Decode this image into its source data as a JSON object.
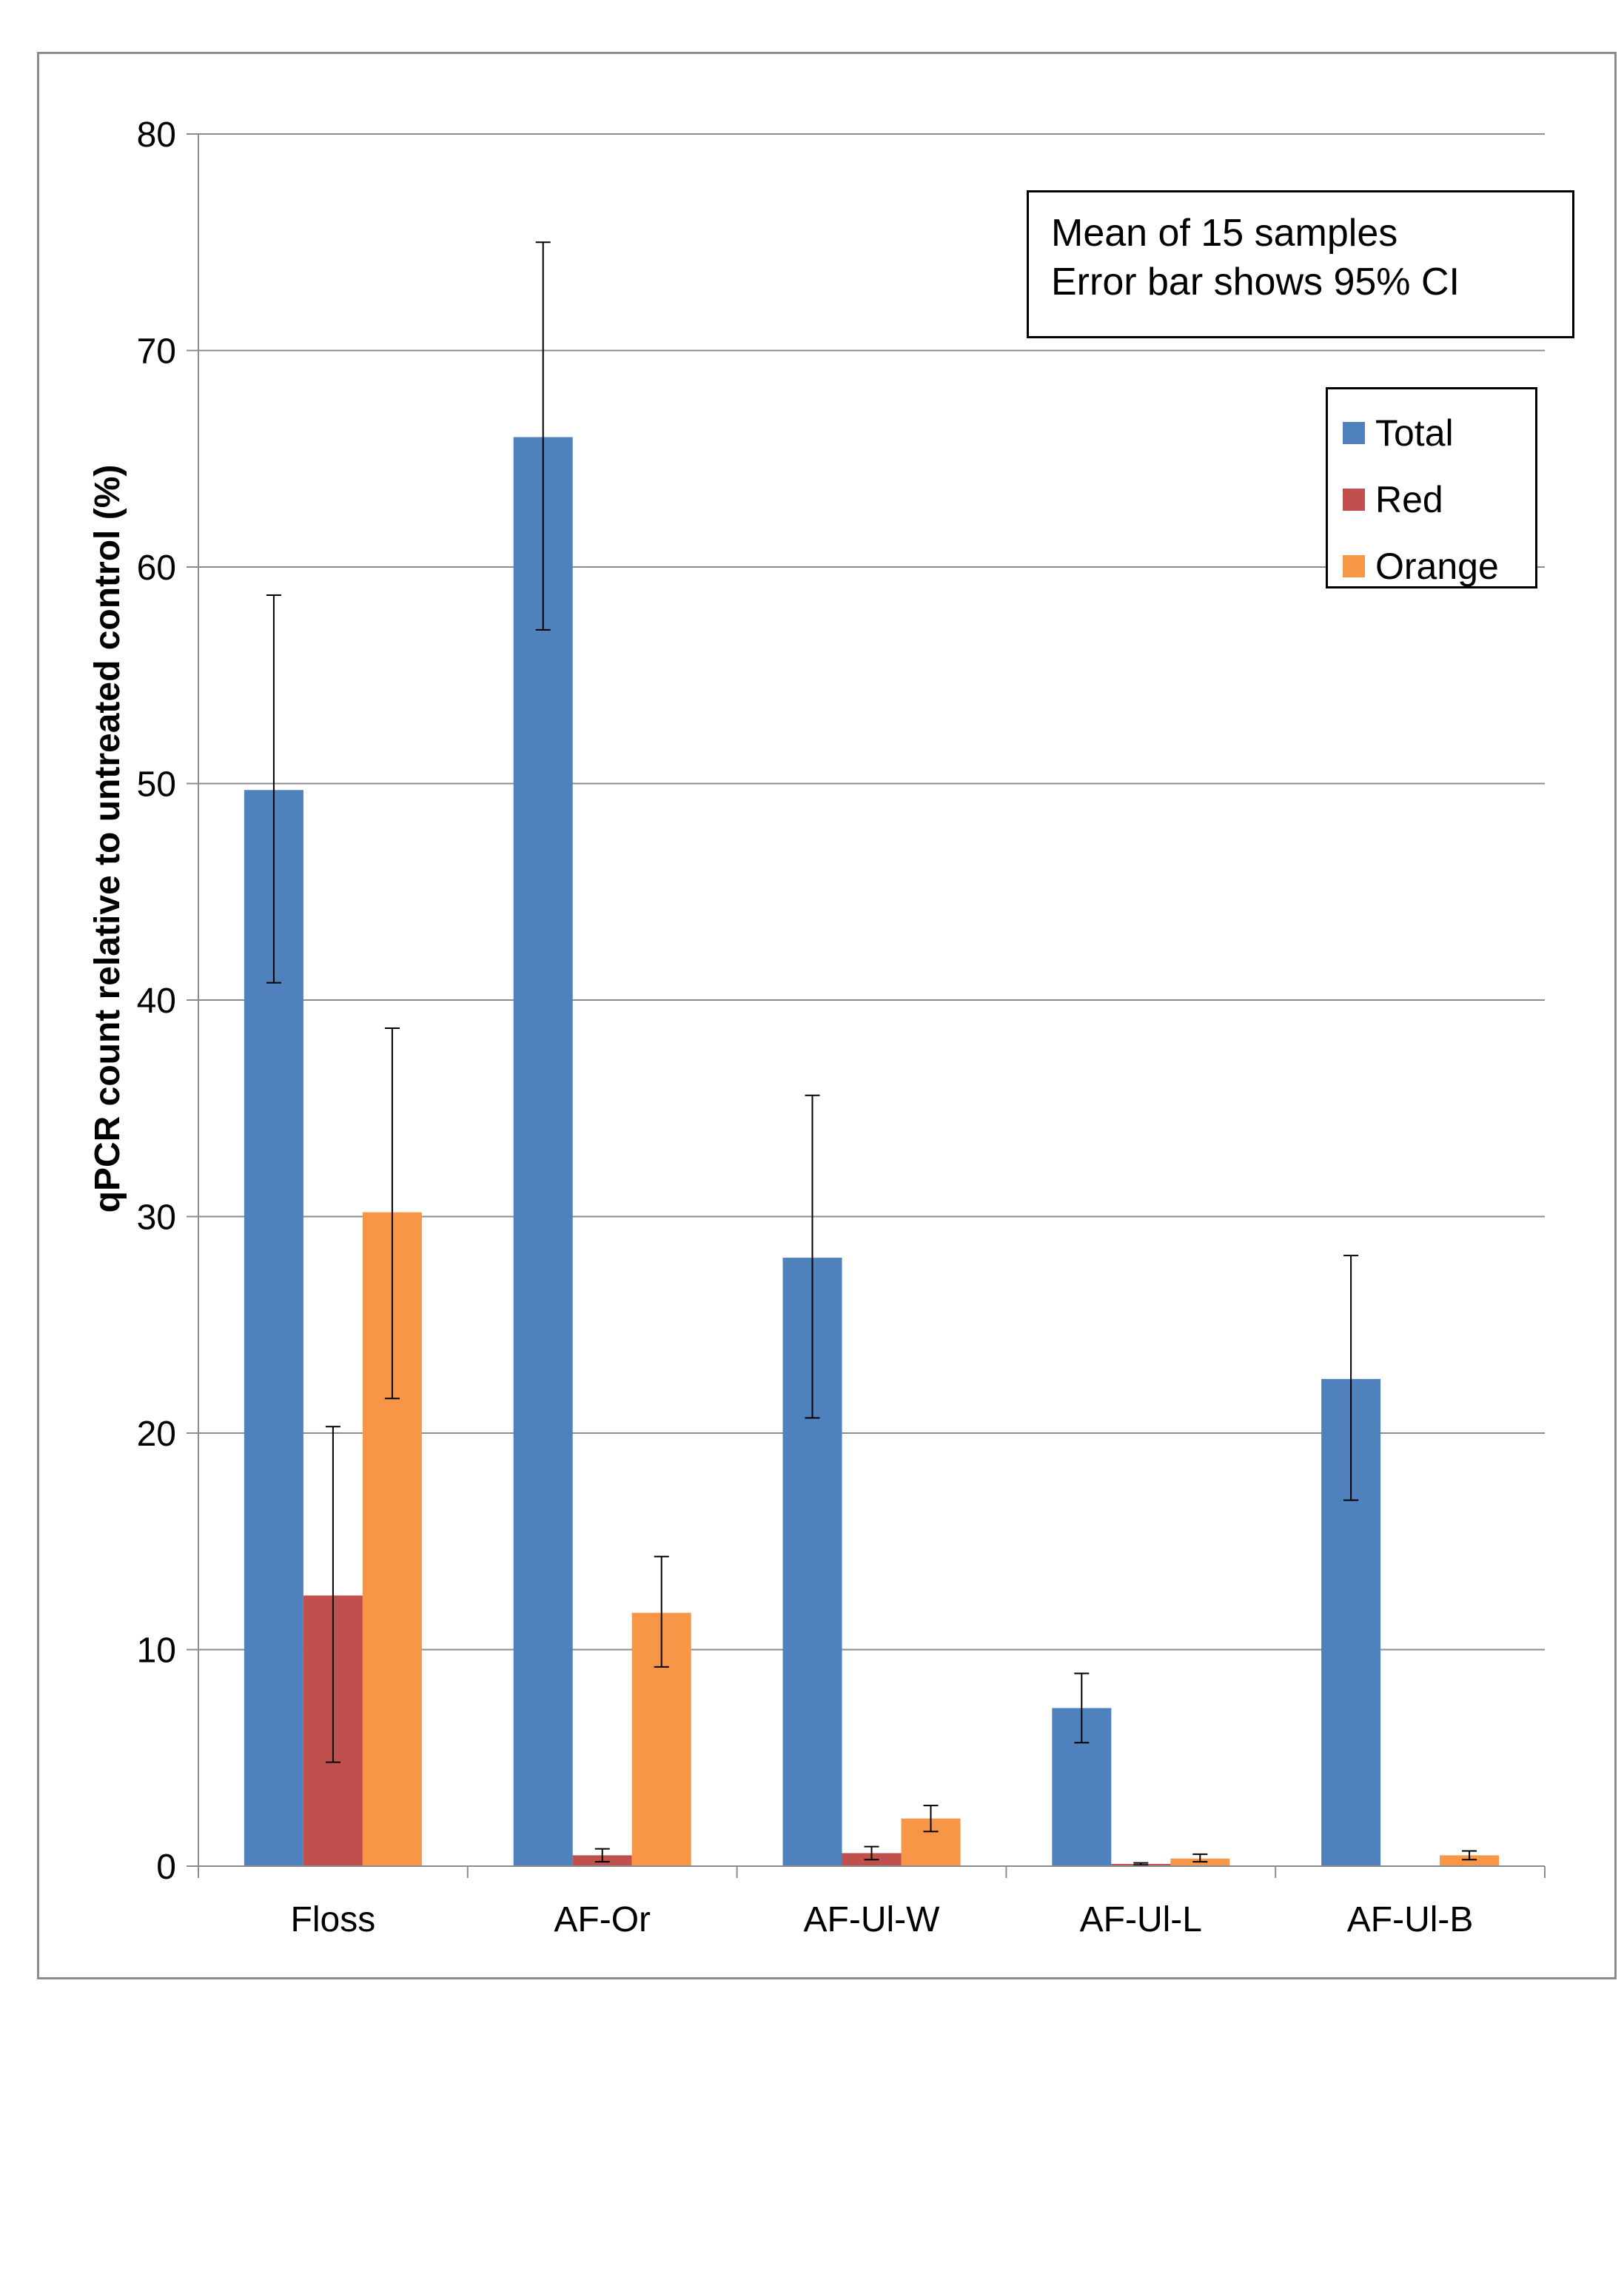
{
  "chart_data": {
    "type": "bar",
    "ylabel": "qPCR count relative to untreated control (%)",
    "xlabel": "",
    "ylim": [
      0,
      80
    ],
    "yticks": [
      0,
      10,
      20,
      30,
      40,
      50,
      60,
      70,
      80
    ],
    "grid": true,
    "legend_position": "top-right",
    "categories": [
      "Floss",
      "AF-Or",
      "AF-Ul-W",
      "AF-Ul-L",
      "AF-Ul-B"
    ],
    "annotation": [
      "Mean of 15 samples",
      "Error bar shows 95% CI"
    ],
    "series": [
      {
        "name": "Total",
        "color": "#4f81bd",
        "values": [
          49.7,
          66.0,
          28.1,
          7.3,
          22.5
        ],
        "error_low": [
          40.8,
          57.1,
          20.7,
          5.7,
          16.9
        ],
        "error_high": [
          58.7,
          75.0,
          35.6,
          8.9,
          28.2
        ]
      },
      {
        "name": "Red",
        "color": "#c0504d",
        "values": [
          12.5,
          0.5,
          0.6,
          0.1,
          0.0
        ],
        "error_low": [
          4.8,
          0.2,
          0.3,
          0.05,
          0.0
        ],
        "error_high": [
          20.3,
          0.8,
          0.9,
          0.15,
          0.0
        ]
      },
      {
        "name": "Orange",
        "color": "#f79646",
        "values": [
          30.2,
          11.7,
          2.2,
          0.35,
          0.5
        ],
        "error_low": [
          21.6,
          9.2,
          1.6,
          0.2,
          0.3
        ],
        "error_high": [
          38.7,
          14.3,
          2.8,
          0.55,
          0.7
        ]
      }
    ]
  }
}
